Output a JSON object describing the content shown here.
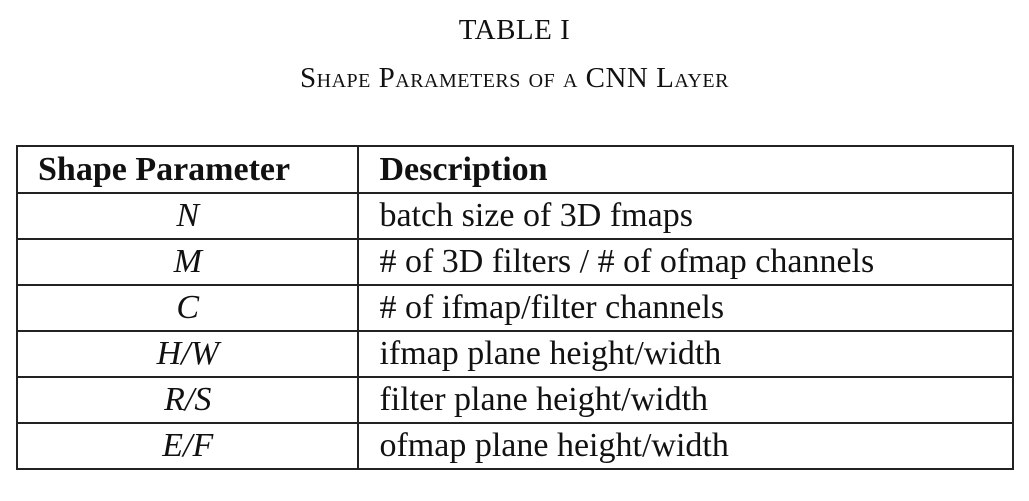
{
  "table_number": "TABLE I",
  "caption": "Shape Parameters of a CNN Layer",
  "headers": [
    "Shape Parameter",
    "Description"
  ],
  "rows": [
    {
      "param": "N",
      "description": "batch size of 3D fmaps"
    },
    {
      "param": "M",
      "description": "# of 3D filters / # of ofmap channels"
    },
    {
      "param": "C",
      "description": "# of ifmap/filter channels"
    },
    {
      "param": "H/W",
      "description": "ifmap plane height/width"
    },
    {
      "param": "R/S",
      "description": "filter plane height/width"
    },
    {
      "param": "E/F",
      "description": "ofmap plane height/width"
    }
  ]
}
